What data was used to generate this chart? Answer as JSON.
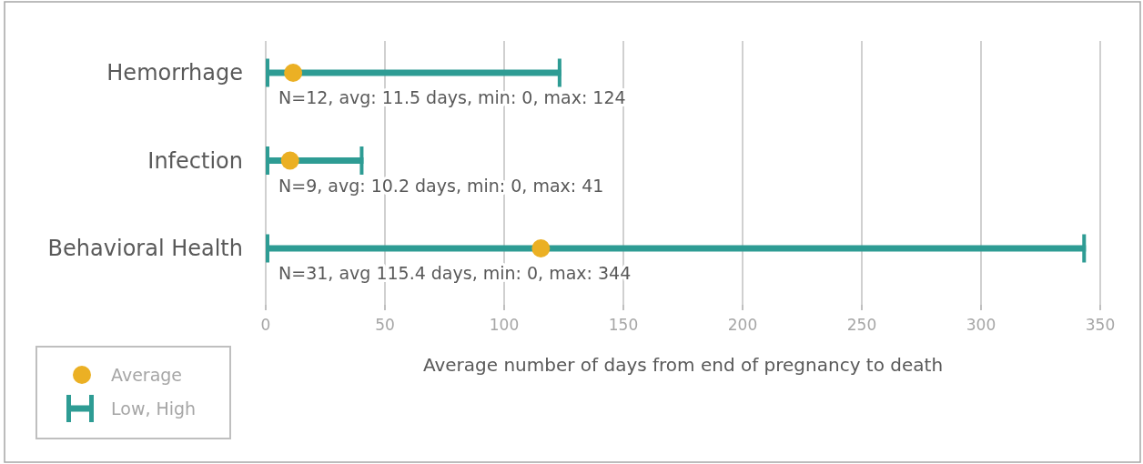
{
  "chart_data": {
    "type": "bar",
    "orientation": "horizontal",
    "categories": [
      "Hemorrhage",
      "Infection",
      "Behavioral Health"
    ],
    "series": [
      {
        "name": "Average",
        "type": "scatter",
        "color": "#ebb024",
        "values": [
          11.5,
          10.2,
          115.4
        ]
      },
      {
        "name": "Low, High",
        "color": "#2e9c94",
        "values": [
          124,
          41,
          344
        ]
      }
    ],
    "annotations": [
      "N=12, avg: 11.5 days, min: 0, max: 124",
      "N=9, avg: 10.2 days, min: 0, max: 41",
      "N=31, avg 115.4 days, min: 0, max: 344"
    ],
    "xlim": [
      0,
      350
    ],
    "xticks": [
      0,
      50,
      100,
      150,
      200,
      250,
      300,
      350
    ],
    "xlabel": "Average number of days from end of pregnancy to death",
    "grid": "x",
    "legend": "bottom left",
    "marker": "circle"
  }
}
